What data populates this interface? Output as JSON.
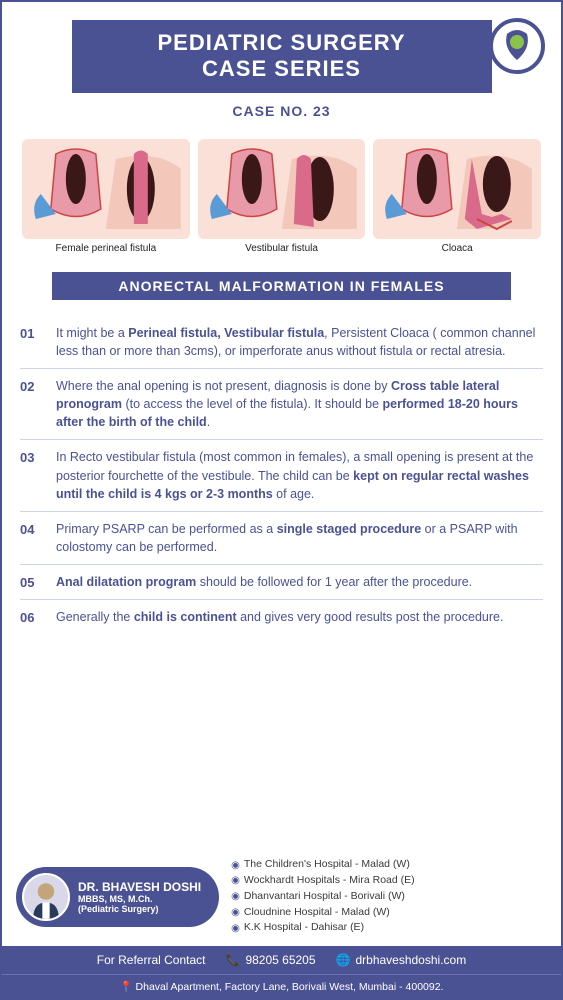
{
  "header": {
    "title_line1": "PEDIATRIC SURGERY",
    "title_line2": "CASE SERIES",
    "case_no": "CASE NO. 23"
  },
  "diagrams": [
    {
      "caption": "Female perineal fistula"
    },
    {
      "caption": "Vestibular fistula"
    },
    {
      "caption": "Cloaca"
    }
  ],
  "section_title": "ANORECTAL MALFORMATION IN FEMALES",
  "points": [
    {
      "num": "01",
      "html": "It might be a <b>Perineal fistula, Vestibular fistula</b>, Persistent Cloaca ( common channel less than or more than 3cms), or imperforate anus without fistula or rectal atresia."
    },
    {
      "num": "02",
      "html": "Where the anal opening is not present, diagnosis is done by <b>Cross table lateral pronogram</b> (to access the level of the fistula). It should be <b>performed 18-20 hours after the birth of the child</b>."
    },
    {
      "num": "03",
      "html": "In Recto vestibular fistula (most common in females), a small opening is present at the posterior fourchette of the vestibule. The child can be <b>kept on regular rectal washes until the child is 4 kgs or 2-3 months</b> of age."
    },
    {
      "num": "04",
      "html": "Primary PSARP can be performed as a <b>single staged procedure</b> or a PSARP with colostomy can be performed."
    },
    {
      "num": "05",
      "html": "<b>Anal dilatation program</b> should be followed for 1 year after the procedure."
    },
    {
      "num": "06",
      "html": "Generally the <b>child is continent</b> and gives very good results post the procedure."
    }
  ],
  "doctor": {
    "name": "DR. BHAVESH DOSHI",
    "credentials": "MBBS, MS,  M.Ch.",
    "specialty": "(Pediatric Surgery)"
  },
  "hospitals": [
    "The Children's Hospital - Malad (W)",
    "Wockhardt Hospitals - Mira Road (E)",
    "Dhanvantari Hospital - Borivali (W)",
    "Cloudnine Hospital - Malad (W)",
    "K.K Hospital - Dahisar (E)"
  ],
  "contact": {
    "label": "For Referral Contact",
    "phone": "98205 65205",
    "website": "drbhaveshdoshi.com"
  },
  "address": "Dhaval Apartment, Factory Lane, Borivali West, Mumbai - 400092.",
  "colors": {
    "primary": "#4a5294",
    "skin": "#fbe0d8"
  }
}
